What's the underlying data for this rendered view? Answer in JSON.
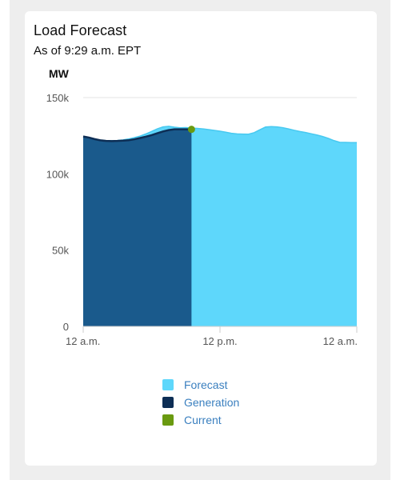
{
  "card": {
    "title": "Load Forecast",
    "subtitle": "As of 9:29 a.m. EPT"
  },
  "chart_data": {
    "type": "area",
    "ylabel": "MW",
    "ylim": [
      0,
      150000
    ],
    "xlim": [
      0,
      24
    ],
    "y_ticks": [
      {
        "value": 150000,
        "label": "150k"
      },
      {
        "value": 100000,
        "label": "100k"
      },
      {
        "value": 50000,
        "label": "50k"
      },
      {
        "value": 0,
        "label": "0"
      }
    ],
    "x_ticks": [
      {
        "value": 0,
        "label": "12 a.m."
      },
      {
        "value": 12,
        "label": "12 p.m."
      },
      {
        "value": 24,
        "label": "12 a.m."
      }
    ],
    "grid": true,
    "legend_position": "bottom",
    "series": [
      {
        "name": "Forecast",
        "color": "#5ed7fb",
        "x": [
          0,
          0.5,
          1,
          1.5,
          2,
          2.5,
          3,
          3.5,
          4,
          4.5,
          5,
          5.5,
          6,
          6.5,
          7,
          7.5,
          8,
          8.5,
          9,
          9.5,
          10,
          10.5,
          11,
          11.5,
          12,
          12.5,
          13,
          13.5,
          14,
          14.5,
          15,
          15.5,
          16,
          16.5,
          17,
          17.5,
          18,
          18.5,
          19,
          19.5,
          20,
          20.5,
          21,
          21.5,
          22,
          22.5,
          23,
          23.5,
          24
        ],
        "values": [
          124500,
          123700,
          122800,
          122000,
          121800,
          121800,
          121900,
          122300,
          122900,
          123800,
          124800,
          126200,
          127800,
          129500,
          130800,
          131200,
          130600,
          130200,
          130300,
          130100,
          129800,
          129500,
          129000,
          128500,
          128000,
          127300,
          126600,
          126200,
          126100,
          126000,
          127000,
          128900,
          130700,
          131000,
          130800,
          130300,
          129500,
          128600,
          127800,
          127100,
          126300,
          125500,
          124500,
          123300,
          121800,
          120700,
          120600,
          120500,
          120500
        ]
      },
      {
        "name": "Generation",
        "color": "#1a5a8c",
        "line_color": "#0d2e55",
        "x": [
          0,
          0.5,
          1,
          1.5,
          2,
          2.5,
          3,
          3.5,
          4,
          4.5,
          5,
          5.5,
          6,
          6.5,
          7,
          7.5,
          8,
          8.5,
          9,
          9.5
        ],
        "values": [
          124500,
          123800,
          122800,
          122000,
          121600,
          121500,
          121600,
          121800,
          122100,
          122700,
          123500,
          124400,
          125400,
          126600,
          127800,
          128700,
          129200,
          129200,
          129200,
          129200
        ]
      },
      {
        "name": "Current",
        "color": "#6a9a10",
        "x": [
          9.5
        ],
        "values": [
          129200
        ]
      }
    ]
  }
}
